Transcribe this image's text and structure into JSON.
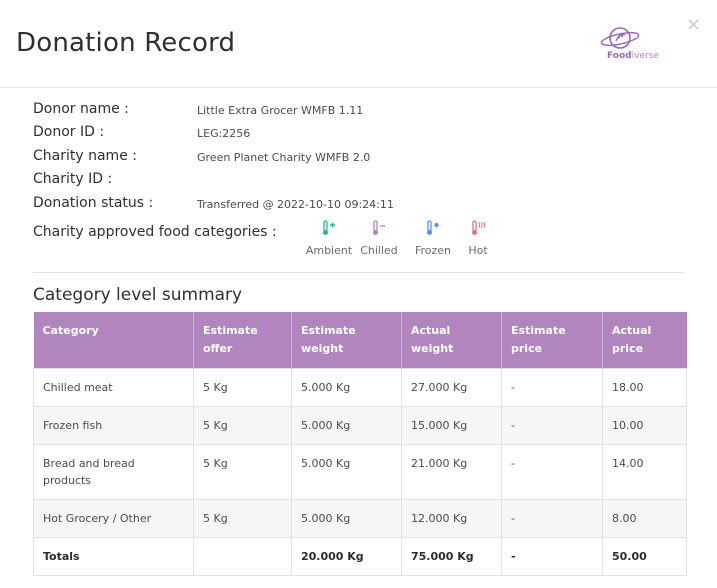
{
  "header": {
    "title": "Donation Record",
    "logo_text_bold": "Food",
    "logo_text_light": "iverse",
    "close_label": "×"
  },
  "details": [
    {
      "label": "Donor name :",
      "value": "Little Extra Grocer WMFB 1.11"
    },
    {
      "label": "Donor ID :",
      "value": "LEG:2256"
    },
    {
      "label": "Charity name :",
      "value": "Green Planet Charity WMFB 2.0"
    },
    {
      "label": "Charity ID :",
      "value": ""
    },
    {
      "label": "Donation status :",
      "value": "Transferred @ 2022-10-10 09:24:11"
    }
  ],
  "categories": {
    "label": "Charity approved food categories :",
    "items": [
      {
        "name": "Ambient",
        "icon": "thermometer-plus-icon",
        "color": "#1fb89a"
      },
      {
        "name": "Chilled",
        "icon": "thermometer-minus-icon",
        "color": "#b186bf"
      },
      {
        "name": "Frozen",
        "icon": "thermometer-snowflake-icon",
        "color": "#5b8fe0"
      },
      {
        "name": "Hot",
        "icon": "thermometer-heat-icon",
        "color": "#e0708e"
      }
    ]
  },
  "summary": {
    "title": "Category level summary",
    "headers": [
      "Category",
      "Estimate offer",
      "Estimate weight",
      "Actual weight",
      "Estimate price",
      "Actual price"
    ],
    "rows": [
      [
        "Chilled meat",
        "5 Kg",
        "5.000 Kg",
        "27.000 Kg",
        "-",
        "18.00"
      ],
      [
        "Frozen fish",
        "5 Kg",
        "5.000 Kg",
        "15.000 Kg",
        "-",
        "10.00"
      ],
      [
        "Bread and bread products",
        "5 Kg",
        "5.000 Kg",
        "21.000 Kg",
        "-",
        "14.00"
      ],
      [
        "Hot Grocery / Other",
        "5 Kg",
        "5.000 Kg",
        "12.000 Kg",
        "-",
        "8.00"
      ]
    ],
    "totals": [
      "Totals",
      "",
      "20.000 Kg",
      "75.000 Kg",
      "-",
      "50.00"
    ]
  }
}
